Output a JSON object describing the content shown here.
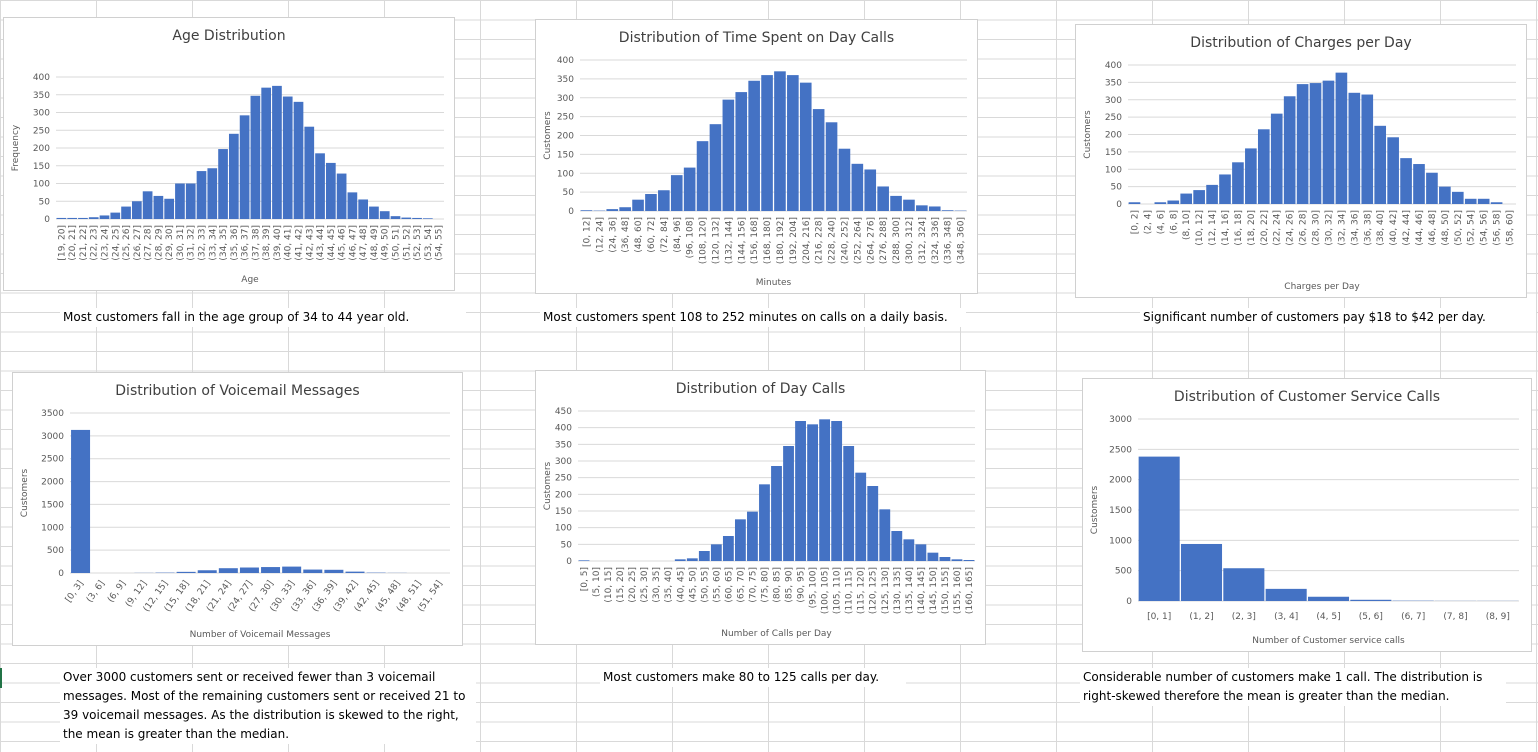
{
  "colors": {
    "bar": "#4472c4",
    "grid": "#d9d9d9",
    "text": "#595959"
  },
  "captions": {
    "age": "Most customers fall in the age group of 34 to 44 year old.",
    "minutes": "Most customers spent 108 to 252 minutes on calls on a daily basis.",
    "charges": "Significant number of customers pay $18 to $42 per day.",
    "voicemail": "Over 3000 customers sent or received fewer than 3 voicemail messages. Most of the remaining customers sent or received 21 to 39 voicemail messages. As the distribution is skewed to the right, the mean is greater than the median.",
    "daycalls": "Most customers make 80 to 125 calls per day.",
    "service": "Considerable number of customers make  1 call. The distribution is right-skewed therefore the mean is greater than the median."
  },
  "chart_data": [
    {
      "id": "age",
      "type": "bar",
      "title": "Age Distribution",
      "xlabel": "Age",
      "ylabel": "Frequency",
      "ylim": [
        0,
        400
      ],
      "yticks": [
        0,
        50,
        100,
        150,
        200,
        250,
        300,
        350,
        400
      ],
      "categories": [
        "[19, 20]",
        "(20, 21]",
        "(21, 22]",
        "(22, 23]",
        "(23, 24]",
        "(24, 25]",
        "(25, 26]",
        "(26, 27]",
        "(27, 28]",
        "(28, 29]",
        "(29, 30]",
        "(30, 31]",
        "(31, 32]",
        "(32, 33]",
        "(33, 34]",
        "(34, 35]",
        "(35, 36]",
        "(36, 37]",
        "(37, 38]",
        "(38, 39]",
        "(39, 40]",
        "(40, 41]",
        "(41, 42]",
        "(42, 43]",
        "(43, 44]",
        "(44, 45]",
        "(45, 46]",
        "(46, 47]",
        "(47, 48]",
        "(48, 49]",
        "(49, 50]",
        "(50, 51]",
        "(51, 52]",
        "(52, 53]",
        "(53, 54]",
        "(54, 55]"
      ],
      "values": [
        3,
        3,
        3,
        5,
        10,
        18,
        35,
        50,
        78,
        65,
        57,
        100,
        100,
        135,
        143,
        197,
        240,
        292,
        347,
        370,
        375,
        345,
        330,
        260,
        185,
        158,
        128,
        75,
        55,
        35,
        22,
        8,
        4,
        3,
        2,
        0
      ],
      "grid": true,
      "legend": "none"
    },
    {
      "id": "minutes",
      "type": "bar",
      "title": "Distribution of Time Spent on Day Calls",
      "xlabel": "Minutes",
      "ylabel": "Customers",
      "ylim": [
        0,
        400
      ],
      "yticks": [
        0,
        50,
        100,
        150,
        200,
        250,
        300,
        350,
        400
      ],
      "categories": [
        "[0, 12]",
        "(12, 24]",
        "(24, 36]",
        "(36, 48]",
        "(48, 60]",
        "(60, 72]",
        "(72, 84]",
        "(84, 96]",
        "(96, 108]",
        "(108, 120]",
        "(120, 132]",
        "(132, 144]",
        "(144, 156]",
        "(156, 168]",
        "(168, 180]",
        "(180, 192]",
        "(192, 204]",
        "(204, 216]",
        "(216, 228]",
        "(228, 240]",
        "(240, 252]",
        "(252, 264]",
        "(264, 276]",
        "(276, 288]",
        "(288, 300]",
        "(300, 312]",
        "(312, 324]",
        "(324, 336]",
        "(336, 348]",
        "(348, 360]"
      ],
      "values": [
        2,
        1,
        5,
        10,
        30,
        45,
        55,
        95,
        115,
        185,
        230,
        295,
        315,
        345,
        360,
        370,
        360,
        340,
        270,
        235,
        165,
        125,
        110,
        65,
        40,
        30,
        15,
        12,
        2,
        1
      ],
      "grid": true,
      "legend": "none"
    },
    {
      "id": "charges",
      "type": "bar",
      "title": "Distribution of Charges per Day",
      "xlabel": "Charges per Day",
      "ylabel": "Customers",
      "ylim": [
        0,
        400
      ],
      "yticks": [
        0,
        50,
        100,
        150,
        200,
        250,
        300,
        350,
        400
      ],
      "categories": [
        "[0, 2]",
        "(2, 4]",
        "(4, 6]",
        "(6, 8]",
        "(8, 10]",
        "(10, 12]",
        "(12, 14]",
        "(14, 16]",
        "(16, 18]",
        "(18, 20]",
        "(20, 22]",
        "(22, 24]",
        "(24, 26]",
        "(26, 28]",
        "(28, 30]",
        "(30, 32]",
        "(32, 34]",
        "(34, 36]",
        "(36, 38]",
        "(38, 40]",
        "(40, 42]",
        "(42, 44]",
        "(44, 46]",
        "(46, 48]",
        "(48, 50]",
        "(50, 52]",
        "(52, 54]",
        "(54, 56]",
        "(56, 58]",
        "(58, 60]"
      ],
      "values": [
        5,
        0,
        5,
        10,
        30,
        40,
        55,
        85,
        120,
        160,
        215,
        260,
        310,
        345,
        348,
        355,
        378,
        320,
        315,
        225,
        192,
        132,
        115,
        90,
        50,
        35,
        15,
        15,
        5,
        0
      ],
      "grid": true,
      "legend": "none"
    },
    {
      "id": "voicemail",
      "type": "bar",
      "title": "Distribution of Voicemail Messages",
      "xlabel": "Number of Voicemail Messages",
      "ylabel": "Customers",
      "ylim": [
        0,
        3500
      ],
      "yticks": [
        0,
        500,
        1000,
        1500,
        2000,
        2500,
        3000,
        3500
      ],
      "categories": [
        "[0, 3]",
        "(3, 6]",
        "(6, 9]",
        "(9, 12]",
        "(12, 15]",
        "(15, 18]",
        "(18, 21]",
        "(21, 24]",
        "(24, 27]",
        "(27, 30]",
        "(30, 33]",
        "(33, 36]",
        "(36, 39]",
        "(39, 42]",
        "(42, 45]",
        "(45, 48]",
        "(48, 51]",
        "(51, 54]"
      ],
      "values": [
        3130,
        0,
        0,
        3,
        8,
        25,
        60,
        105,
        120,
        130,
        140,
        75,
        70,
        30,
        8,
        3,
        0,
        0
      ],
      "grid": true,
      "legend": "none"
    },
    {
      "id": "daycalls",
      "type": "bar",
      "title": "Distribution of Day Calls",
      "xlabel": "Number of Calls per Day",
      "ylabel": "Customers",
      "ylim": [
        0,
        450
      ],
      "yticks": [
        0,
        50,
        100,
        150,
        200,
        250,
        300,
        350,
        400,
        450
      ],
      "categories": [
        "[0, 5]",
        "(5, 10]",
        "(10, 15]",
        "(15, 20]",
        "(20, 25]",
        "(25, 30]",
        "(30, 35]",
        "(35, 40]",
        "(40, 45]",
        "(45, 50]",
        "(50, 55]",
        "(55, 60]",
        "(60, 65]",
        "(65, 70]",
        "(70, 75]",
        "(75, 80]",
        "(80, 85]",
        "(85, 90]",
        "(90, 95]",
        "(95, 100]",
        "(100, 105]",
        "(105, 110]",
        "(110, 115]",
        "(115, 120]",
        "(120, 125]",
        "(125, 130]",
        "(130, 135]",
        "(135, 140]",
        "(140, 145]",
        "(145, 150]",
        "(150, 155]",
        "(155, 160]",
        "(160, 165]"
      ],
      "values": [
        2,
        0,
        0,
        0,
        0,
        0,
        0,
        0,
        5,
        8,
        30,
        50,
        75,
        125,
        148,
        230,
        285,
        345,
        420,
        410,
        425,
        420,
        345,
        265,
        225,
        155,
        90,
        65,
        50,
        25,
        12,
        5,
        3
      ],
      "grid": true,
      "legend": "none"
    },
    {
      "id": "service",
      "type": "bar",
      "title": "Distribution of Customer Service Calls",
      "xlabel": "Number of Customer service calls",
      "ylabel": "Customers",
      "ylim": [
        0,
        3000
      ],
      "yticks": [
        0,
        500,
        1000,
        1500,
        2000,
        2500,
        3000
      ],
      "categories": [
        "[0, 1]",
        "(1, 2]",
        "(2, 3]",
        "(3, 4]",
        "(4, 5]",
        "(5, 6]",
        "(6, 7]",
        "(7, 8]",
        "(8, 9]"
      ],
      "values": [
        2380,
        940,
        540,
        200,
        70,
        20,
        5,
        2,
        2
      ],
      "grid": true,
      "legend": "none"
    }
  ]
}
